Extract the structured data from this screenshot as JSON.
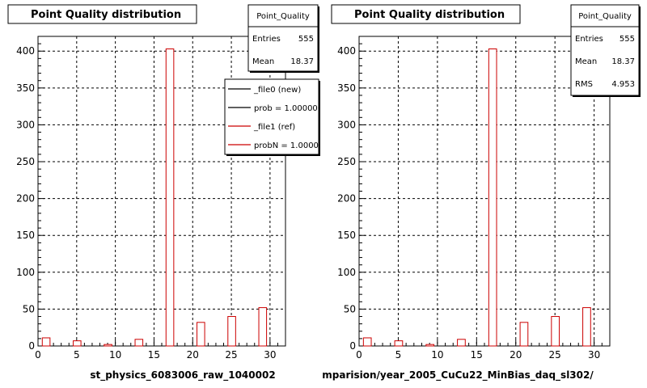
{
  "chart_data": [
    {
      "type": "bar",
      "title": "Point Quality distribution",
      "xlabel": "st_physics_6083006_raw_1040002",
      "ylabel": "",
      "xlim": [
        0,
        32
      ],
      "ylim": [
        0,
        420
      ],
      "xticks": [
        0,
        5,
        10,
        15,
        20,
        25,
        30
      ],
      "yticks": [
        0,
        50,
        100,
        150,
        200,
        250,
        300,
        350,
        400
      ],
      "grid": true,
      "series_color": "#cc0000",
      "x": [
        1,
        5,
        9,
        13,
        17,
        21,
        25,
        29
      ],
      "values": [
        11,
        7,
        2,
        9,
        403,
        32,
        40,
        52
      ],
      "stats": {
        "title": "Point_Quality",
        "rows": [
          {
            "label": "Entries",
            "value": "555"
          },
          {
            "label": "Mean",
            "value": "18.37"
          }
        ]
      },
      "legend": [
        {
          "label": "_file0 (new)",
          "color": "#000000"
        },
        {
          "label": "prob = 1.000000",
          "color": "#000000"
        },
        {
          "label": "_file1 (ref)",
          "color": "#cc0000"
        },
        {
          "label": "probN = 1.000000",
          "color": "#cc0000"
        }
      ]
    },
    {
      "type": "bar",
      "title": "Point Quality distribution",
      "xlabel": "mparision/year_2005_CuCu22_MinBias_daq_sl302/",
      "ylabel": "",
      "xlim": [
        0,
        32
      ],
      "ylim": [
        0,
        420
      ],
      "xticks": [
        0,
        5,
        10,
        15,
        20,
        25,
        30
      ],
      "yticks": [
        0,
        50,
        100,
        150,
        200,
        250,
        300,
        350,
        400
      ],
      "grid": true,
      "series_color": "#cc0000",
      "x": [
        1,
        5,
        9,
        13,
        17,
        21,
        25,
        29
      ],
      "values": [
        11,
        7,
        2,
        9,
        403,
        32,
        40,
        52
      ],
      "stats": {
        "title": "Point_Quality",
        "rows": [
          {
            "label": "Entries",
            "value": "555"
          },
          {
            "label": "Mean",
            "value": "18.37"
          },
          {
            "label": "RMS",
            "value": "4.953"
          }
        ]
      }
    }
  ]
}
